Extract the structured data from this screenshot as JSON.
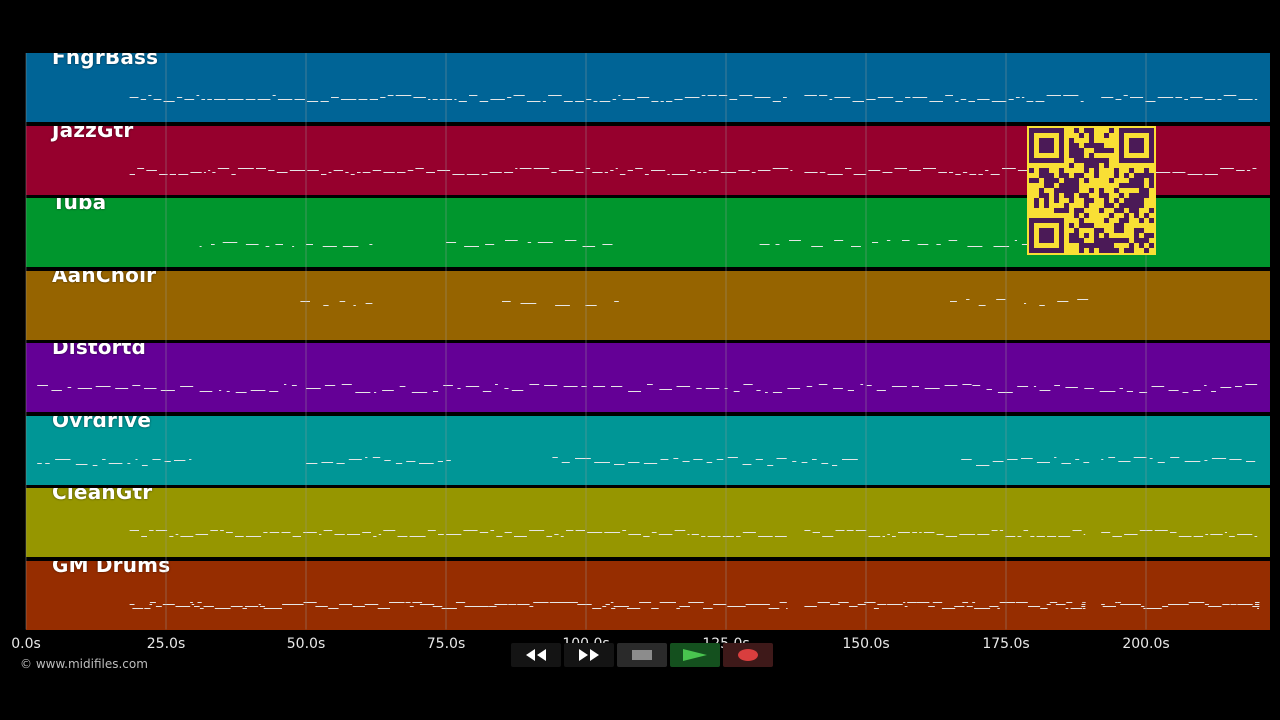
{
  "copyright": "© www.midifiles.com",
  "axis": {
    "ticks": [
      "0.0s",
      "25.0s",
      "50.0s",
      "75.0s",
      "100.0s",
      "125.0s",
      "150.0s",
      "175.0s",
      "200.0s"
    ]
  },
  "tracks": [
    {
      "name": "FngrBass",
      "color": "#006496"
    },
    {
      "name": "JazzGtr",
      "color": "#96002d"
    },
    {
      "name": "Tuba",
      "color": "#00962d"
    },
    {
      "name": "AahChoir",
      "color": "#966400"
    },
    {
      "name": "Distortd",
      "color": "#640096"
    },
    {
      "name": "Ovrdrive",
      "color": "#009696"
    },
    {
      "name": "CleanGtr",
      "color": "#969600"
    },
    {
      "name": "GM Drums",
      "color": "#962d00"
    }
  ],
  "transport": {
    "rewind": "rewind-icon",
    "fast_forward": "fast-forward-icon",
    "stop": "stop-icon",
    "play": "play-icon",
    "record": "record-icon"
  },
  "colors": {
    "background": "#000000",
    "grid": "#9a9a9a",
    "note": "#e6e6e6",
    "qr_background": "#f9df35",
    "qr_module": "#4b1a57"
  }
}
